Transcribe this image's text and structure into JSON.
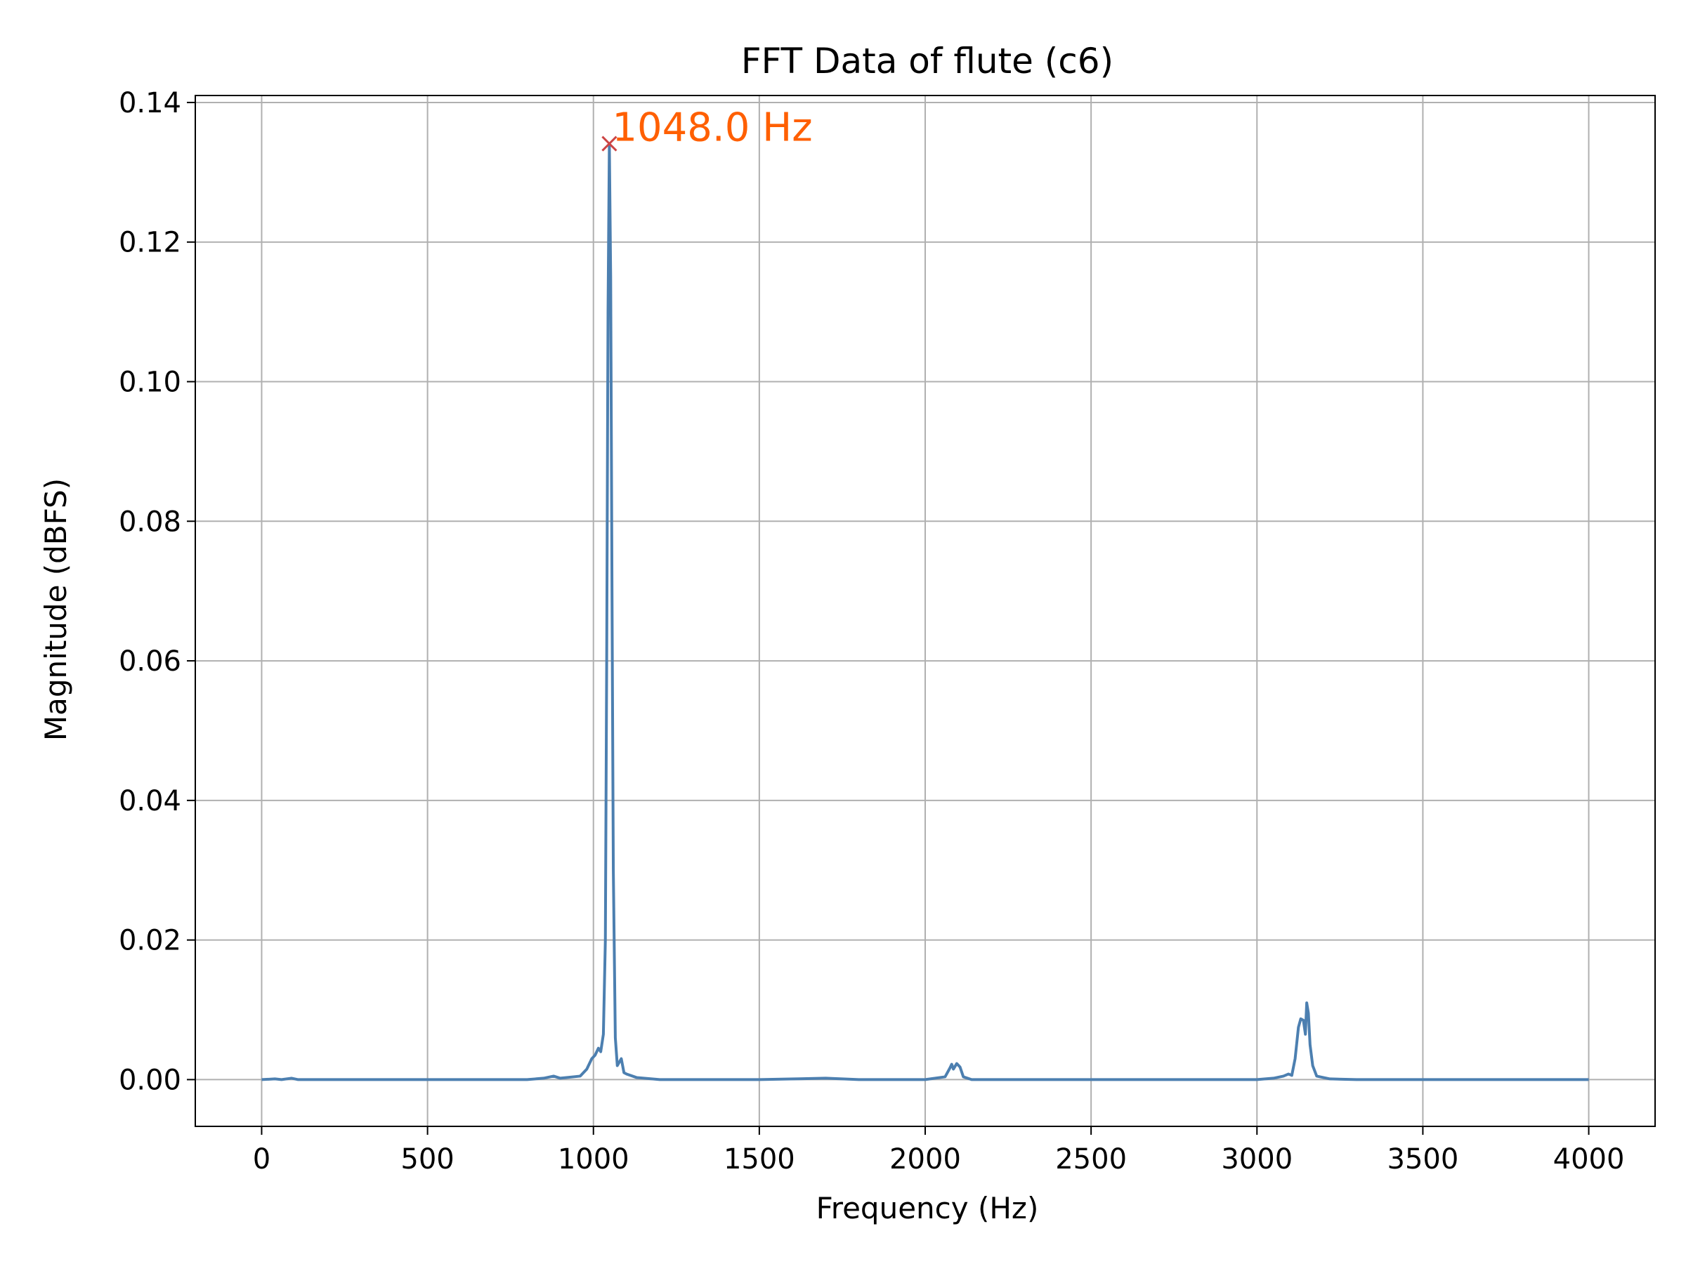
{
  "chart_data": {
    "type": "line",
    "title": "FFT Data of flute (c6)",
    "xlabel": "Frequency (Hz)",
    "ylabel": "Magnitude (dBFS)",
    "xlim": [
      -200,
      4200
    ],
    "ylim": [
      -0.0067,
      0.141
    ],
    "xticks": [
      0,
      500,
      1000,
      1500,
      2000,
      2500,
      3000,
      3500,
      4000
    ],
    "xtick_labels": [
      "0",
      "500",
      "1000",
      "1500",
      "2000",
      "2500",
      "3000",
      "3500",
      "4000"
    ],
    "yticks": [
      0.0,
      0.02,
      0.04,
      0.06,
      0.08,
      0.1,
      0.12,
      0.14
    ],
    "ytick_labels": [
      "0.00",
      "0.02",
      "0.04",
      "0.06",
      "0.08",
      "0.10",
      "0.12",
      "0.14"
    ],
    "grid": true,
    "series": [
      {
        "color": "#4c7fb0",
        "points": [
          [
            0,
            0.0
          ],
          [
            40,
            0.0001
          ],
          [
            60,
            0.0
          ],
          [
            90,
            0.0002
          ],
          [
            110,
            0.0
          ],
          [
            300,
            0.0
          ],
          [
            600,
            0.0
          ],
          [
            800,
            0.0
          ],
          [
            850,
            0.0002
          ],
          [
            880,
            0.0005
          ],
          [
            900,
            0.0002
          ],
          [
            940,
            0.0004
          ],
          [
            960,
            0.0005
          ],
          [
            980,
            0.0015
          ],
          [
            995,
            0.003
          ],
          [
            1005,
            0.0035
          ],
          [
            1015,
            0.0045
          ],
          [
            1022,
            0.004
          ],
          [
            1030,
            0.0065
          ],
          [
            1036,
            0.02
          ],
          [
            1040,
            0.06
          ],
          [
            1044,
            0.11
          ],
          [
            1048,
            0.134
          ],
          [
            1052,
            0.115
          ],
          [
            1056,
            0.07
          ],
          [
            1060,
            0.03
          ],
          [
            1066,
            0.006
          ],
          [
            1072,
            0.002
          ],
          [
            1078,
            0.0025
          ],
          [
            1084,
            0.003
          ],
          [
            1092,
            0.001
          ],
          [
            1100,
            0.0008
          ],
          [
            1130,
            0.0003
          ],
          [
            1200,
            0.0
          ],
          [
            1500,
            0.0
          ],
          [
            1700,
            0.0002
          ],
          [
            1800,
            0.0
          ],
          [
            2000,
            0.0
          ],
          [
            2060,
            0.0004
          ],
          [
            2075,
            0.0017
          ],
          [
            2080,
            0.0022
          ],
          [
            2085,
            0.0015
          ],
          [
            2095,
            0.0023
          ],
          [
            2105,
            0.0018
          ],
          [
            2115,
            0.0004
          ],
          [
            2140,
            0.0
          ],
          [
            2500,
            0.0
          ],
          [
            3000,
            0.0
          ],
          [
            3050,
            0.0002
          ],
          [
            3080,
            0.0005
          ],
          [
            3095,
            0.0008
          ],
          [
            3105,
            0.0006
          ],
          [
            3115,
            0.003
          ],
          [
            3125,
            0.0075
          ],
          [
            3132,
            0.0087
          ],
          [
            3140,
            0.0085
          ],
          [
            3146,
            0.0065
          ],
          [
            3150,
            0.011
          ],
          [
            3155,
            0.0095
          ],
          [
            3160,
            0.005
          ],
          [
            3168,
            0.002
          ],
          [
            3180,
            0.0005
          ],
          [
            3220,
            0.0001
          ],
          [
            3300,
            0.0
          ],
          [
            4000,
            0.0
          ]
        ]
      }
    ],
    "peak_marker": {
      "x": 1048.0,
      "y": 0.1341,
      "marker": "x",
      "color": "#cc4444"
    },
    "annotation": {
      "text": "1048.0 Hz",
      "x": 1048.0,
      "y": 0.1341,
      "color": "#ff5f00"
    }
  }
}
